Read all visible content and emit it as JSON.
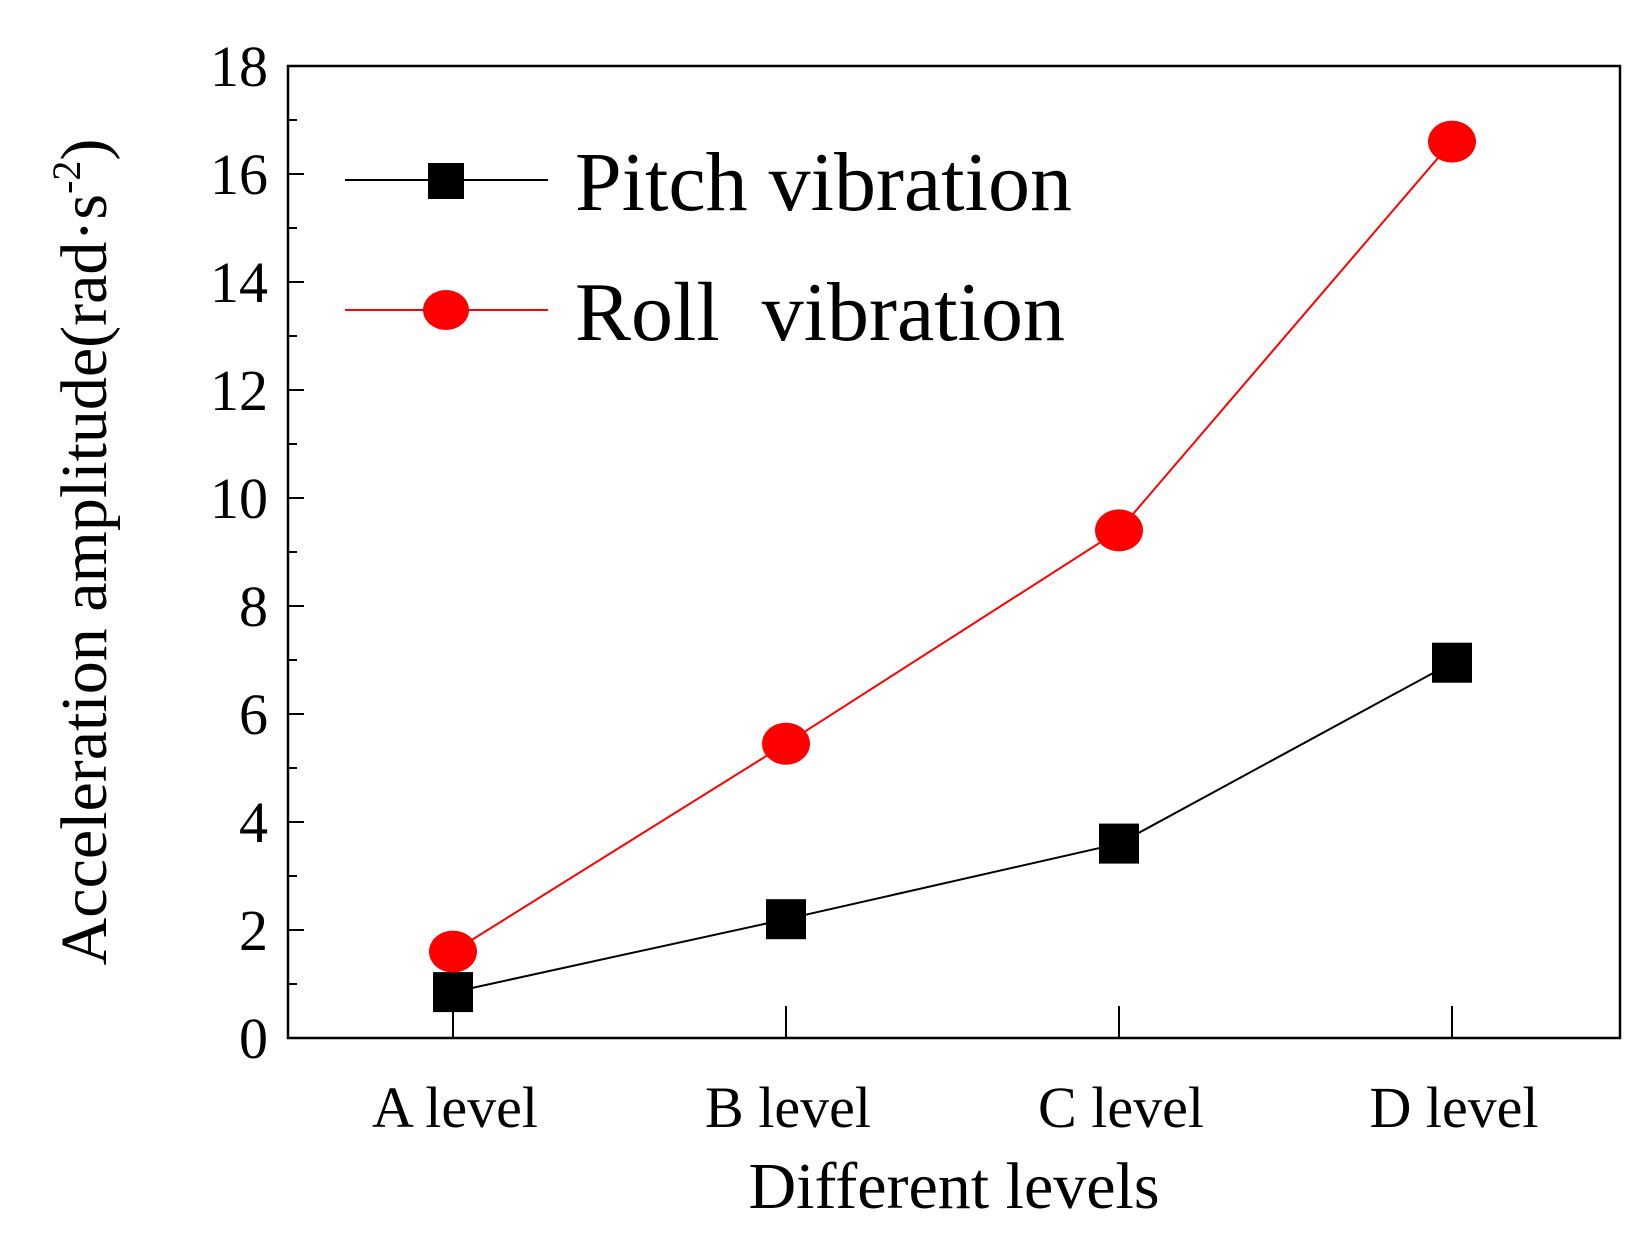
{
  "chart_data": {
    "type": "line",
    "title": "",
    "xlabel": "Different levels",
    "ylabel": "Acceleration amplitude(rad·s",
    "ylabel_superscript": "-2",
    "ylabel_close": ")",
    "categories": [
      "A level",
      "B level",
      "C level",
      "D level"
    ],
    "ylim": [
      0,
      18
    ],
    "yticks": [
      0,
      2,
      4,
      6,
      8,
      10,
      12,
      14,
      16,
      18
    ],
    "yticks_text": [
      "0",
      "2",
      "4",
      "6",
      "8",
      "10",
      "12",
      "14",
      "16",
      "18"
    ],
    "legend_position": "top-left",
    "grid": false,
    "series": [
      {
        "name": "Pitch vibration",
        "values": [
          0.85,
          2.2,
          3.6,
          6.95
        ],
        "marker": "square",
        "color": "#000000"
      },
      {
        "name": "Roll  vibration",
        "values": [
          1.6,
          5.45,
          9.4,
          16.6
        ],
        "marker": "circle",
        "color": "#ff0000"
      }
    ]
  }
}
